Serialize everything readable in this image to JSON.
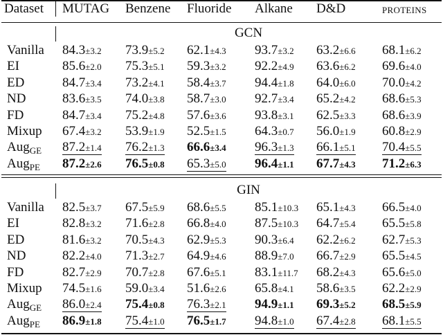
{
  "header": {
    "dataset": "Dataset",
    "columns": [
      "MUTAG",
      "Benzene",
      "Fluoride",
      "Alkane",
      "D&D",
      "PROTEINS"
    ]
  },
  "sections": [
    {
      "name": "GCN",
      "rows": [
        {
          "method": "Vanilla",
          "method_sub": "",
          "cells": [
            {
              "mean": "84.3",
              "std": "±3.2",
              "bold": false,
              "underline": false
            },
            {
              "mean": "73.9",
              "std": "±5.2",
              "bold": false,
              "underline": false
            },
            {
              "mean": "62.1",
              "std": "±4.3",
              "bold": false,
              "underline": false
            },
            {
              "mean": "93.7",
              "std": "±3.2",
              "bold": false,
              "underline": false
            },
            {
              "mean": "63.2",
              "std": "±6.6",
              "bold": false,
              "underline": false
            },
            {
              "mean": "68.1",
              "std": "±6.2",
              "bold": false,
              "underline": false
            }
          ]
        },
        {
          "method": "EI",
          "method_sub": "",
          "cells": [
            {
              "mean": "85.6",
              "std": "±2.0",
              "bold": false,
              "underline": false
            },
            {
              "mean": "75.3",
              "std": "±5.1",
              "bold": false,
              "underline": false
            },
            {
              "mean": "59.3",
              "std": "±3.2",
              "bold": false,
              "underline": false
            },
            {
              "mean": "92.2",
              "std": "±4.9",
              "bold": false,
              "underline": false
            },
            {
              "mean": "63.6",
              "std": "±6.2",
              "bold": false,
              "underline": false
            },
            {
              "mean": "69.6",
              "std": "±4.0",
              "bold": false,
              "underline": false
            }
          ]
        },
        {
          "method": "ED",
          "method_sub": "",
          "cells": [
            {
              "mean": "84.7",
              "std": "±3.4",
              "bold": false,
              "underline": false
            },
            {
              "mean": "73.2",
              "std": "±4.1",
              "bold": false,
              "underline": false
            },
            {
              "mean": "58.4",
              "std": "±3.7",
              "bold": false,
              "underline": false
            },
            {
              "mean": "94.4",
              "std": "±1.8",
              "bold": false,
              "underline": false
            },
            {
              "mean": "64.0",
              "std": "±6.0",
              "bold": false,
              "underline": false
            },
            {
              "mean": "70.0",
              "std": "±4.2",
              "bold": false,
              "underline": false
            }
          ]
        },
        {
          "method": "ND",
          "method_sub": "",
          "cells": [
            {
              "mean": "83.6",
              "std": "±3.5",
              "bold": false,
              "underline": false
            },
            {
              "mean": "74.0",
              "std": "±3.8",
              "bold": false,
              "underline": false
            },
            {
              "mean": "58.7",
              "std": "±3.0",
              "bold": false,
              "underline": false
            },
            {
              "mean": "92.7",
              "std": "±3.4",
              "bold": false,
              "underline": false
            },
            {
              "mean": "65.2",
              "std": "±4.2",
              "bold": false,
              "underline": false
            },
            {
              "mean": "68.6",
              "std": "±5.3",
              "bold": false,
              "underline": false
            }
          ]
        },
        {
          "method": "FD",
          "method_sub": "",
          "cells": [
            {
              "mean": "84.7",
              "std": "±3.4",
              "bold": false,
              "underline": false
            },
            {
              "mean": "75.2",
              "std": "±4.8",
              "bold": false,
              "underline": false
            },
            {
              "mean": "57.6",
              "std": "±3.6",
              "bold": false,
              "underline": false
            },
            {
              "mean": "93.8",
              "std": "±3.1",
              "bold": false,
              "underline": false
            },
            {
              "mean": "62.5",
              "std": "±3.3",
              "bold": false,
              "underline": false
            },
            {
              "mean": "68.6",
              "std": "±3.9",
              "bold": false,
              "underline": false
            }
          ]
        },
        {
          "method": "Mixup",
          "method_sub": "",
          "cells": [
            {
              "mean": "67.4",
              "std": "±3.2",
              "bold": false,
              "underline": false
            },
            {
              "mean": "53.9",
              "std": "±1.9",
              "bold": false,
              "underline": false
            },
            {
              "mean": "52.5",
              "std": "±1.5",
              "bold": false,
              "underline": false
            },
            {
              "mean": "64.3",
              "std": "±0.7",
              "bold": false,
              "underline": false
            },
            {
              "mean": "56.0",
              "std": "±1.9",
              "bold": false,
              "underline": false
            },
            {
              "mean": "60.8",
              "std": "±2.9",
              "bold": false,
              "underline": false
            }
          ]
        },
        {
          "method": "Aug",
          "method_sub": "GE",
          "cells": [
            {
              "mean": "87.2",
              "std": "±1.4",
              "bold": false,
              "underline": true
            },
            {
              "mean": "76.2",
              "std": "±1.3",
              "bold": false,
              "underline": true
            },
            {
              "mean": "66.6",
              "std": "±3.4",
              "bold": true,
              "underline": false
            },
            {
              "mean": "96.3",
              "std": "±1.3",
              "bold": false,
              "underline": true
            },
            {
              "mean": "66.1",
              "std": "±5.1",
              "bold": false,
              "underline": true
            },
            {
              "mean": "70.4",
              "std": "±5.5",
              "bold": false,
              "underline": true
            }
          ]
        },
        {
          "method": "Aug",
          "method_sub": "PE",
          "cells": [
            {
              "mean": "87.2",
              "std": "±2.6",
              "bold": true,
              "underline": false
            },
            {
              "mean": "76.5",
              "std": "±0.8",
              "bold": true,
              "underline": false
            },
            {
              "mean": "65.3",
              "std": "±5.0",
              "bold": false,
              "underline": true
            },
            {
              "mean": "96.4",
              "std": "±1.1",
              "bold": true,
              "underline": false
            },
            {
              "mean": "67.7",
              "std": "±4.3",
              "bold": true,
              "underline": false
            },
            {
              "mean": "71.2",
              "std": "±6.3",
              "bold": true,
              "underline": false
            }
          ]
        }
      ]
    },
    {
      "name": "GIN",
      "rows": [
        {
          "method": "Vanilla",
          "method_sub": "",
          "cells": [
            {
              "mean": "82.5",
              "std": "±3.7",
              "bold": false,
              "underline": false
            },
            {
              "mean": "67.5",
              "std": "±5.9",
              "bold": false,
              "underline": false
            },
            {
              "mean": "68.6",
              "std": "±5.5",
              "bold": false,
              "underline": false
            },
            {
              "mean": "85.1",
              "std": "±10.3",
              "bold": false,
              "underline": false
            },
            {
              "mean": "65.1",
              "std": "±4.3",
              "bold": false,
              "underline": false
            },
            {
              "mean": "66.5",
              "std": "±4.0",
              "bold": false,
              "underline": false
            }
          ]
        },
        {
          "method": "EI",
          "method_sub": "",
          "cells": [
            {
              "mean": "82.8",
              "std": "±3.2",
              "bold": false,
              "underline": false
            },
            {
              "mean": "71.6",
              "std": "±2.8",
              "bold": false,
              "underline": false
            },
            {
              "mean": "66.8",
              "std": "±4.0",
              "bold": false,
              "underline": false
            },
            {
              "mean": "87.5",
              "std": "±10.3",
              "bold": false,
              "underline": false
            },
            {
              "mean": "64.7",
              "std": "±5.4",
              "bold": false,
              "underline": false
            },
            {
              "mean": "65.5",
              "std": "±5.8",
              "bold": false,
              "underline": false
            }
          ]
        },
        {
          "method": "ED",
          "method_sub": "",
          "cells": [
            {
              "mean": "81.6",
              "std": "±3.2",
              "bold": false,
              "underline": false
            },
            {
              "mean": "70.5",
              "std": "±4.3",
              "bold": false,
              "underline": false
            },
            {
              "mean": "62.9",
              "std": "±5.3",
              "bold": false,
              "underline": false
            },
            {
              "mean": "90.3",
              "std": "±6.4",
              "bold": false,
              "underline": false
            },
            {
              "mean": "62.2",
              "std": "±6.2",
              "bold": false,
              "underline": false
            },
            {
              "mean": "62.7",
              "std": "±5.3",
              "bold": false,
              "underline": false
            }
          ]
        },
        {
          "method": "ND",
          "method_sub": "",
          "cells": [
            {
              "mean": "82.2",
              "std": "±4.0",
              "bold": false,
              "underline": false
            },
            {
              "mean": "71.3",
              "std": "±2.7",
              "bold": false,
              "underline": false
            },
            {
              "mean": "64.9",
              "std": "±4.6",
              "bold": false,
              "underline": false
            },
            {
              "mean": "88.9",
              "std": "±7.0",
              "bold": false,
              "underline": false
            },
            {
              "mean": "66.7",
              "std": "±2.9",
              "bold": false,
              "underline": false
            },
            {
              "mean": "65.5",
              "std": "±4.5",
              "bold": false,
              "underline": false
            }
          ]
        },
        {
          "method": "FD",
          "method_sub": "",
          "cells": [
            {
              "mean": "82.7",
              "std": "±2.9",
              "bold": false,
              "underline": false
            },
            {
              "mean": "70.7",
              "std": "±2.8",
              "bold": false,
              "underline": false
            },
            {
              "mean": "67.6",
              "std": "±5.1",
              "bold": false,
              "underline": false
            },
            {
              "mean": "83.1",
              "std": "±11.7",
              "bold": false,
              "underline": false
            },
            {
              "mean": "68.2",
              "std": "±4.3",
              "bold": false,
              "underline": false
            },
            {
              "mean": "65.6",
              "std": "±5.0",
              "bold": false,
              "underline": false
            }
          ]
        },
        {
          "method": "Mixup",
          "method_sub": "",
          "cells": [
            {
              "mean": "74.5",
              "std": "±1.6",
              "bold": false,
              "underline": false
            },
            {
              "mean": "59.0",
              "std": "±3.4",
              "bold": false,
              "underline": false
            },
            {
              "mean": "51.6",
              "std": "±2.6",
              "bold": false,
              "underline": false
            },
            {
              "mean": "65.8",
              "std": "±4.1",
              "bold": false,
              "underline": false
            },
            {
              "mean": "58.6",
              "std": "±3.5",
              "bold": false,
              "underline": false
            },
            {
              "mean": "62.2",
              "std": "±2.9",
              "bold": false,
              "underline": false
            }
          ]
        },
        {
          "method": "Aug",
          "method_sub": "GE",
          "cells": [
            {
              "mean": "86.0",
              "std": "±2.4",
              "bold": false,
              "underline": true
            },
            {
              "mean": "75.4",
              "std": "±0.8",
              "bold": true,
              "underline": false
            },
            {
              "mean": "76.3",
              "std": "±2.1",
              "bold": false,
              "underline": true
            },
            {
              "mean": "94.9",
              "std": "±1.1",
              "bold": true,
              "underline": false
            },
            {
              "mean": "69.3",
              "std": "±5.2",
              "bold": true,
              "underline": false
            },
            {
              "mean": "68.5",
              "std": "±5.9",
              "bold": true,
              "underline": false
            }
          ]
        },
        {
          "method": "Aug",
          "method_sub": "PE",
          "cells": [
            {
              "mean": "86.9",
              "std": "±1.8",
              "bold": true,
              "underline": false
            },
            {
              "mean": "75.4",
              "std": "±1.0",
              "bold": false,
              "underline": true
            },
            {
              "mean": "76.5",
              "std": "±1.7",
              "bold": true,
              "underline": false
            },
            {
              "mean": "94.8",
              "std": "±1.0",
              "bold": false,
              "underline": true
            },
            {
              "mean": "67.4",
              "std": "±2.8",
              "bold": false,
              "underline": true
            },
            {
              "mean": "68.1",
              "std": "±5.5",
              "bold": false,
              "underline": true
            }
          ]
        }
      ]
    }
  ]
}
